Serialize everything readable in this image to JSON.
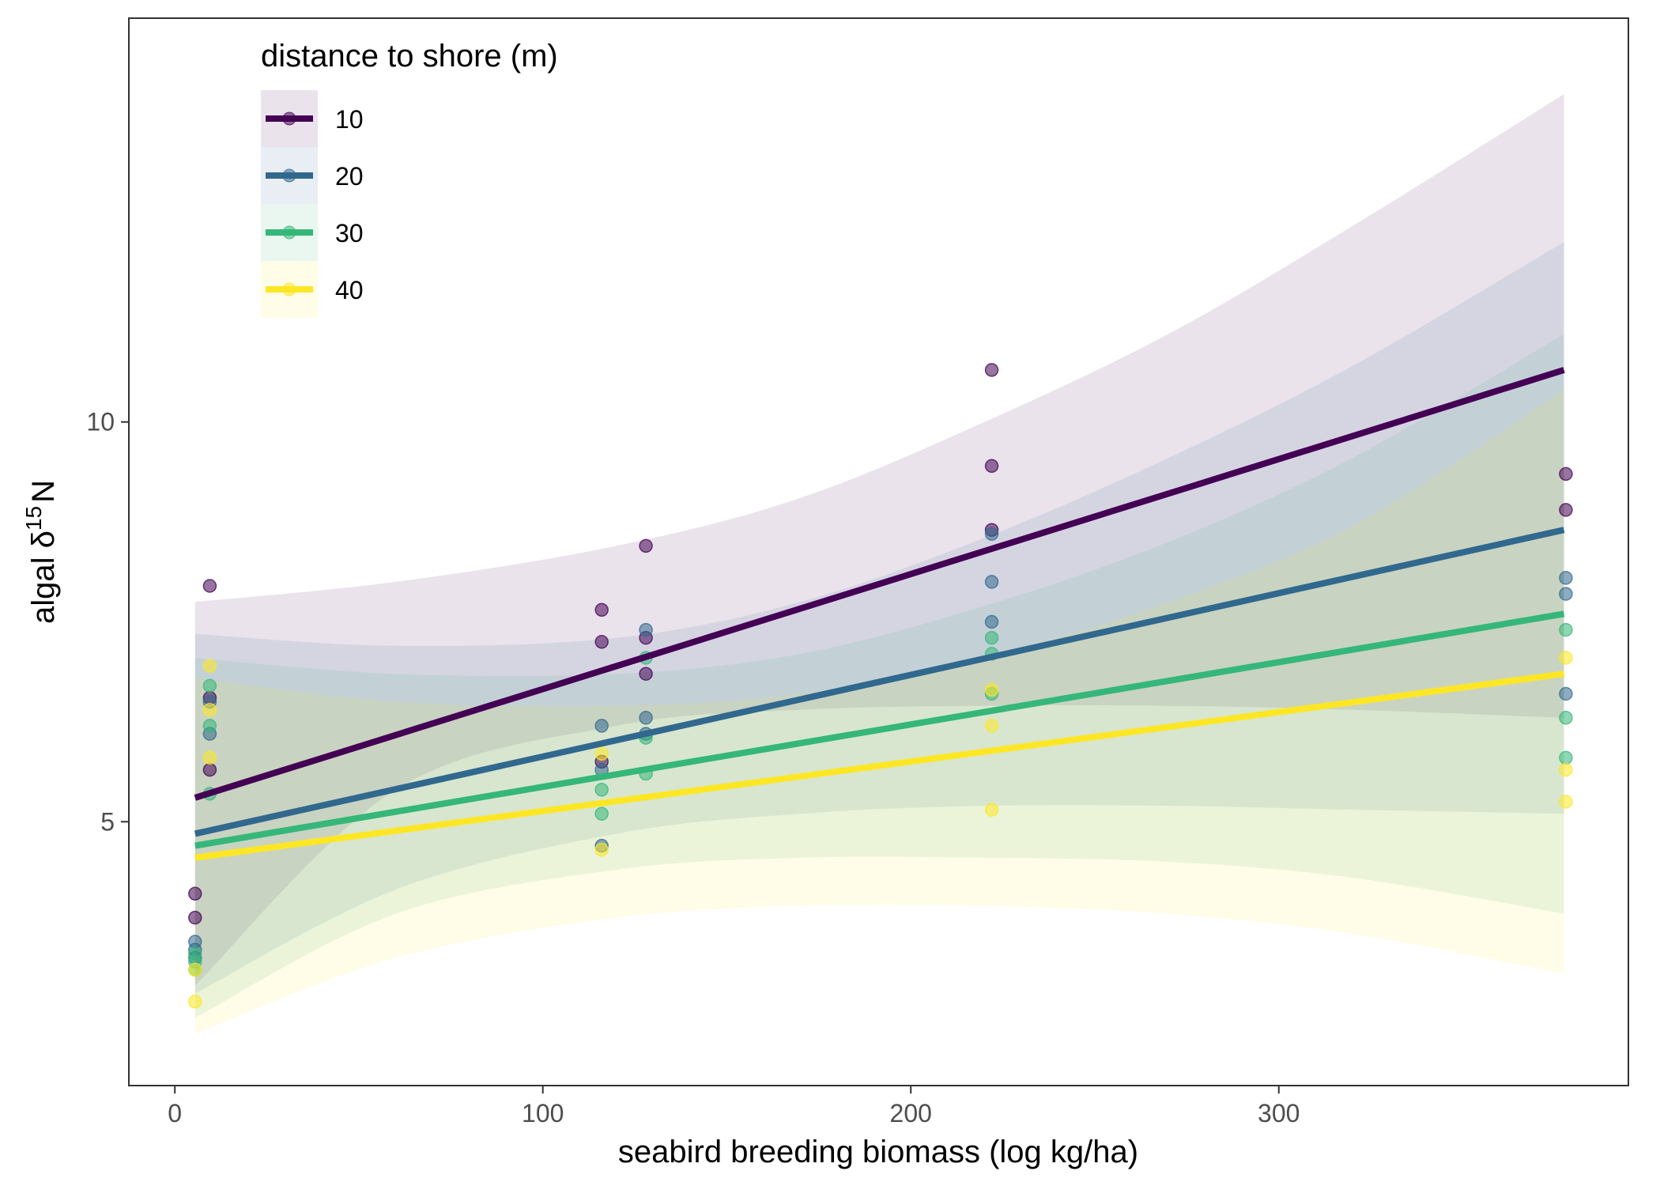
{
  "chart_data": {
    "type": "scatter",
    "xlabel": "seabird breeding biomass (log kg/ha)",
    "ylabel": {
      "prefix": "algal ",
      "delta": "δ",
      "superscript": "15",
      "suffix": "N"
    },
    "xlim": [
      -12.5,
      395
    ],
    "ylim": [
      1.7,
      15.05
    ],
    "xticks": [
      0,
      100,
      200,
      300
    ],
    "yticks": [
      5,
      10
    ],
    "xtick_labels": [
      "0",
      "100",
      "200",
      "300"
    ],
    "ytick_labels": [
      "5",
      "10"
    ],
    "grid": false,
    "legend": {
      "title": "distance to shore (m)",
      "position": "top-left-inside"
    },
    "series": [
      {
        "name": "10",
        "color": "#440154",
        "line": {
          "x": [
            5.5,
            377.5
          ],
          "y": [
            5.3,
            10.65
          ]
        },
        "ribbon": {
          "x": [
            5.5,
            60,
            120,
            170,
            220,
            270,
            320,
            377.5
          ],
          "upper": [
            7.75,
            8.0,
            8.45,
            9.05,
            10.0,
            11.1,
            12.45,
            14.1
          ],
          "lower": [
            2.95,
            5.4,
            6.2,
            6.4,
            6.45,
            6.45,
            6.4,
            6.3
          ]
        },
        "points": [
          [
            5.5,
            4.1
          ],
          [
            5.5,
            3.8
          ],
          [
            9.5,
            7.95
          ],
          [
            9.5,
            5.65
          ],
          [
            9.5,
            6.55
          ],
          [
            116,
            7.65
          ],
          [
            116,
            7.25
          ],
          [
            116,
            5.75
          ],
          [
            128,
            8.45
          ],
          [
            128,
            7.3
          ],
          [
            128,
            6.85
          ],
          [
            222,
            10.65
          ],
          [
            222,
            9.45
          ],
          [
            222,
            8.65
          ],
          [
            378,
            9.35
          ],
          [
            378,
            8.9
          ]
        ]
      },
      {
        "name": "20",
        "color": "#31688e",
        "line": {
          "x": [
            5.5,
            377.5
          ],
          "y": [
            4.85,
            8.65
          ]
        },
        "ribbon": {
          "x": [
            5.5,
            60,
            120,
            170,
            220,
            270,
            320,
            377.5
          ],
          "upper": [
            7.35,
            7.2,
            7.3,
            7.75,
            8.55,
            9.55,
            10.7,
            12.25
          ],
          "lower": [
            2.85,
            4.15,
            4.85,
            5.1,
            5.2,
            5.2,
            5.15,
            5.1
          ]
        },
        "points": [
          [
            5.5,
            3.5
          ],
          [
            5.5,
            3.4
          ],
          [
            5.5,
            3.3
          ],
          [
            9.5,
            6.5
          ],
          [
            9.5,
            6.1
          ],
          [
            116,
            6.2
          ],
          [
            116,
            5.65
          ],
          [
            116,
            4.7
          ],
          [
            128,
            7.4
          ],
          [
            128,
            6.3
          ],
          [
            128,
            6.1
          ],
          [
            222,
            8.6
          ],
          [
            222,
            8.0
          ],
          [
            222,
            7.5
          ],
          [
            378,
            8.05
          ],
          [
            378,
            7.85
          ],
          [
            378,
            6.6
          ]
        ]
      },
      {
        "name": "30",
        "color": "#35b779",
        "line": {
          "x": [
            5.5,
            377.5
          ],
          "y": [
            4.7,
            7.6
          ]
        },
        "ribbon": {
          "x": [
            5.5,
            60,
            120,
            170,
            220,
            270,
            320,
            377.5
          ],
          "upper": [
            7.05,
            6.85,
            6.85,
            7.1,
            7.7,
            8.5,
            9.55,
            11.1
          ],
          "lower": [
            2.55,
            3.85,
            4.4,
            4.55,
            4.55,
            4.5,
            4.3,
            3.85
          ]
        },
        "points": [
          [
            5.5,
            3.35
          ],
          [
            5.5,
            3.25
          ],
          [
            5.5,
            3.15
          ],
          [
            9.5,
            6.7
          ],
          [
            9.5,
            6.2
          ],
          [
            9.5,
            5.35
          ],
          [
            116,
            5.4
          ],
          [
            116,
            5.1
          ],
          [
            128,
            7.05
          ],
          [
            128,
            6.05
          ],
          [
            128,
            5.6
          ],
          [
            222,
            7.3
          ],
          [
            222,
            7.1
          ],
          [
            222,
            6.6
          ],
          [
            378,
            7.4
          ],
          [
            378,
            6.3
          ],
          [
            378,
            5.8
          ]
        ]
      },
      {
        "name": "40",
        "color": "#fde725",
        "line": {
          "x": [
            5.5,
            377.5
          ],
          "y": [
            4.55,
            6.85
          ]
        },
        "ribbon": {
          "x": [
            5.5,
            60,
            120,
            170,
            220,
            270,
            320,
            377.5
          ],
          "upper": [
            6.8,
            6.5,
            6.45,
            6.6,
            7.05,
            7.75,
            8.7,
            10.4
          ],
          "lower": [
            2.35,
            3.3,
            3.8,
            3.95,
            3.95,
            3.85,
            3.6,
            3.1
          ]
        },
        "points": [
          [
            5.5,
            3.15
          ],
          [
            5.5,
            2.75
          ],
          [
            9.5,
            6.95
          ],
          [
            9.5,
            6.4
          ],
          [
            9.5,
            5.8
          ],
          [
            116,
            5.85
          ],
          [
            116,
            4.65
          ],
          [
            222,
            6.65
          ],
          [
            222,
            6.2
          ],
          [
            222,
            5.15
          ],
          [
            378,
            7.05
          ],
          [
            378,
            5.65
          ],
          [
            378,
            5.25
          ]
        ]
      }
    ]
  }
}
